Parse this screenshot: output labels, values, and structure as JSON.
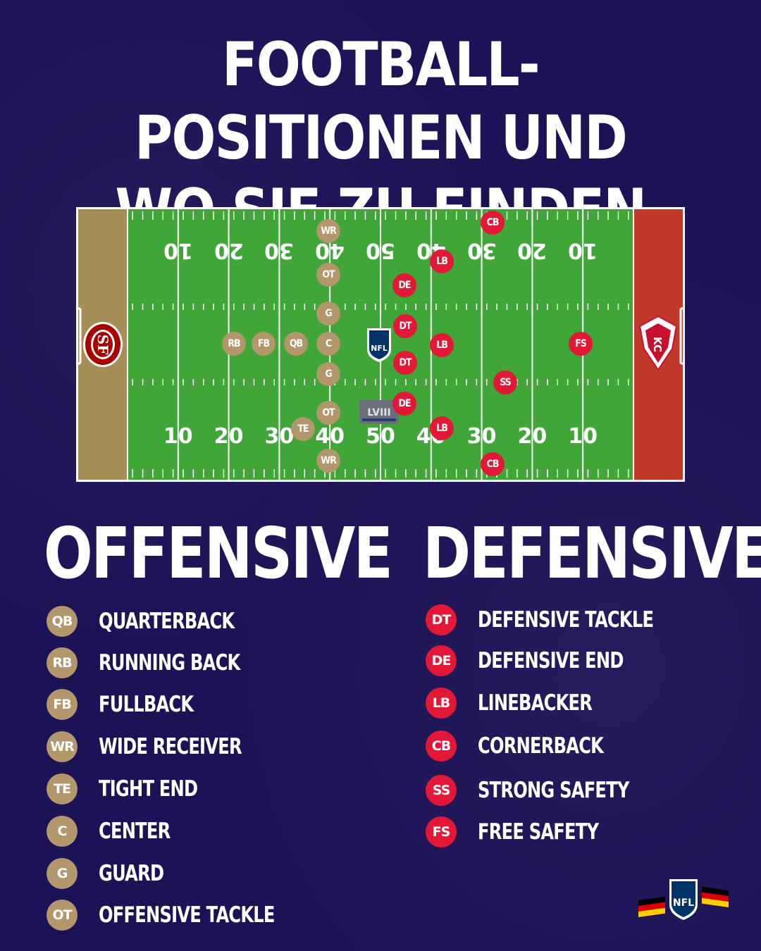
{
  "title": {
    "line1": "FOOTBALL-POSITIONEN UND",
    "line2": "WO SIE ZU FINDEN SIND:"
  },
  "colors": {
    "background": "#1c1256",
    "field": "#3fa637",
    "offense": "#b1976b",
    "defense": "#e31837",
    "left_endzone": "#a58f57",
    "right_endzone": "#c0392b"
  },
  "field": {
    "left_logo": "49ers-logo",
    "right_logo": "chiefs-logo",
    "center_logo": "nfl-shield-logo",
    "top_numbers": [
      "10",
      "20",
      "30",
      "40",
      "50",
      "40",
      "30",
      "20",
      "10"
    ],
    "bottom_numbers": [
      "10",
      "20",
      "30",
      "40",
      "50",
      "40",
      "30",
      "20",
      "10"
    ],
    "offense_markers": [
      "WR",
      "OT",
      "G",
      "C",
      "G",
      "OT",
      "WR",
      "TE",
      "QB",
      "FB",
      "RB"
    ],
    "defense_markers": [
      "CB",
      "LB",
      "DE",
      "DT",
      "LB",
      "DT",
      "DE",
      "LB",
      "CB",
      "SS",
      "FS"
    ]
  },
  "offensive": {
    "heading": "OFFENSIVE",
    "items": [
      {
        "abbr": "QB",
        "label": "QUARTERBACK"
      },
      {
        "abbr": "RB",
        "label": "RUNNING BACK"
      },
      {
        "abbr": "FB",
        "label": "FULLBACK"
      },
      {
        "abbr": "WR",
        "label": "WIDE RECEIVER"
      },
      {
        "abbr": "TE",
        "label": "TIGHT END"
      },
      {
        "abbr": "C",
        "label": "CENTER"
      },
      {
        "abbr": "G",
        "label": "GUARD"
      },
      {
        "abbr": "OT",
        "label": "OFFENSIVE TACKLE"
      }
    ]
  },
  "defensive": {
    "heading": "DEFENSIVE",
    "items": [
      {
        "abbr": "DT",
        "label": "DEFENSIVE TACKLE"
      },
      {
        "abbr": "DE",
        "label": "DEFENSIVE END"
      },
      {
        "abbr": "LB",
        "label": "LINEBACKER"
      },
      {
        "abbr": "CB",
        "label": "CORNERBACK"
      },
      {
        "abbr": "SS",
        "label": "STRONG SAFETY"
      },
      {
        "abbr": "FS",
        "label": "FREE SAFETY"
      }
    ]
  },
  "footer": {
    "logo": "nfl-germany-logo",
    "logo_text": "NFL"
  }
}
